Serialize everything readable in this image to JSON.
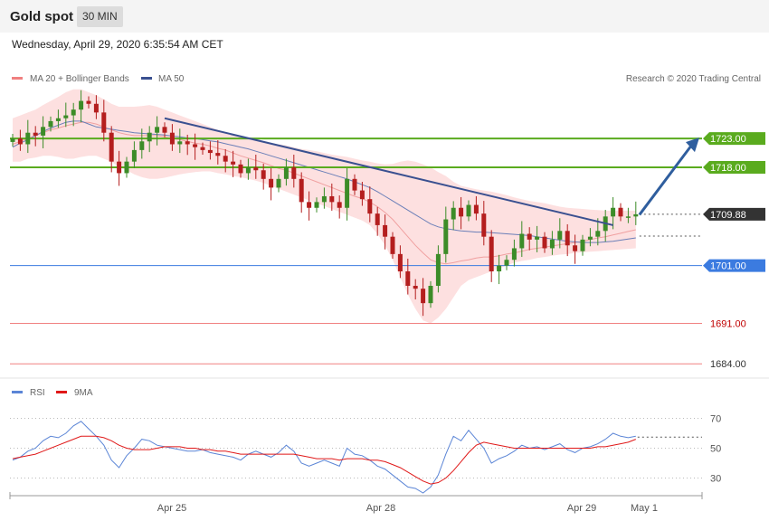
{
  "header": {
    "title": "Gold spot",
    "timeframe": "30 MIN"
  },
  "datetime": "Wednesday, April 29, 2020 6:35:54 AM CET",
  "legend": {
    "ma20": "MA 20 + Bollinger Bands",
    "ma50": "MA 50",
    "credit": "Research © 2020 Trading Central"
  },
  "rsi_legend": {
    "rsi": "RSI",
    "ma9": "9MA"
  },
  "colors": {
    "resistance": "#5aab1e",
    "pivot": "#3b7be0",
    "support": "#f08080",
    "trend": "#3a5090",
    "up": "#3c8c28",
    "down": "#b41e1e",
    "bands": "#fde0e0",
    "last": "#333333"
  },
  "chart_data": [
    {
      "type": "line",
      "title": "Gold spot",
      "ylim": [
        1682,
        1731
      ],
      "x_labels": [
        "Apr 25",
        "Apr 28",
        "Apr 29",
        "May 1"
      ],
      "levels": [
        {
          "name": "resistance2",
          "label": "1723.00",
          "value": 1723.0
        },
        {
          "name": "resistance1",
          "label": "1718.00",
          "value": 1718.0
        },
        {
          "name": "last",
          "label": "1709.88",
          "value": 1709.88
        },
        {
          "name": "pivot",
          "label": "1701.00",
          "value": 1701.0
        },
        {
          "name": "support1",
          "label": "1691.00",
          "value": 1691.0
        },
        {
          "name": "support2",
          "label": "1684.00",
          "value": 1684.0
        }
      ],
      "trendline": [
        [
          1726.5,
          1708.0
        ]
      ],
      "target_arrow": [
        1709.8,
        1723.0
      ],
      "close": [
        1723.0,
        1722.0,
        1724.0,
        1723.5,
        1725.0,
        1726.0,
        1726.5,
        1727.0,
        1728.0,
        1729.5,
        1729.0,
        1727.5,
        1724.0,
        1719.0,
        1717.0,
        1719.0,
        1721.0,
        1722.5,
        1724.0,
        1725.0,
        1724.0,
        1722.0,
        1722.5,
        1722.0,
        1721.5,
        1721.0,
        1720.5,
        1720.0,
        1719.0,
        1718.5,
        1717.0,
        1718.0,
        1717.5,
        1716.0,
        1714.5,
        1716.0,
        1718.0,
        1716.0,
        1712.0,
        1711.0,
        1712.0,
        1713.0,
        1712.0,
        1711.0,
        1716.0,
        1714.0,
        1712.5,
        1710.0,
        1708.0,
        1706.0,
        1703.0,
        1700.0,
        1697.5,
        1697.0,
        1694.5,
        1697.5,
        1703.0,
        1709.0,
        1711.0,
        1709.5,
        1711.5,
        1710.0,
        1706.0,
        1700.0,
        1701.0,
        1702.0,
        1704.0,
        1706.5,
        1705.5,
        1706.0,
        1704.0,
        1705.5,
        1707.0,
        1704.5,
        1703.5,
        1705.5,
        1706.0,
        1707.0,
        1709.5,
        1711.0,
        1709.5,
        1709.5,
        1709.88
      ],
      "ma20": [
        1722.0,
        1722.5,
        1723.0,
        1723.5,
        1724.0,
        1724.5,
        1724.8,
        1725.2,
        1725.5,
        1725.8,
        1725.8,
        1725.5,
        1725.0,
        1724.5,
        1724.0,
        1723.7,
        1723.5,
        1723.5,
        1723.5,
        1723.5,
        1723.3,
        1723.0,
        1722.8,
        1722.5,
        1722.2,
        1722.0,
        1721.7,
        1721.3,
        1721.0,
        1720.5,
        1720.0,
        1719.6,
        1719.2,
        1718.8,
        1718.3,
        1717.8,
        1717.5,
        1717.0,
        1716.5,
        1716.0,
        1715.5,
        1715.0,
        1714.5,
        1714.0,
        1713.5,
        1713.0,
        1712.6,
        1712.0,
        1711.2,
        1710.2,
        1709.0,
        1707.5,
        1706.0,
        1704.5,
        1703.2,
        1702.0,
        1701.5,
        1701.3,
        1701.5,
        1701.8,
        1702.0,
        1702.3,
        1702.5,
        1702.5,
        1702.7,
        1703.0,
        1703.2,
        1703.5,
        1703.8,
        1704.0,
        1704.2,
        1704.4,
        1704.6,
        1704.8,
        1705.0,
        1705.2,
        1705.5,
        1705.8,
        1706.0,
        1706.3,
        1706.6,
        1706.9,
        1707.2
      ],
      "bb_upper": [
        1726.5,
        1727.0,
        1727.5,
        1728.0,
        1728.8,
        1729.5,
        1730.2,
        1731.0,
        1731.5,
        1731.5,
        1731.0,
        1730.5,
        1729.8,
        1729.0,
        1728.5,
        1728.5,
        1728.5,
        1728.6,
        1728.8,
        1728.5,
        1728.0,
        1727.5,
        1727.0,
        1726.5,
        1726.0,
        1725.5,
        1725.0,
        1724.5,
        1724.0,
        1723.6,
        1723.3,
        1723.0,
        1722.7,
        1722.5,
        1722.2,
        1722.0,
        1721.8,
        1721.5,
        1721.2,
        1721.0,
        1720.8,
        1720.5,
        1720.2,
        1720.0,
        1719.8,
        1719.5,
        1719.2,
        1719.0,
        1718.7,
        1718.5,
        1718.6,
        1719.0,
        1719.2,
        1719.0,
        1718.5,
        1718.0,
        1717.2,
        1716.5,
        1715.5,
        1714.8,
        1714.5,
        1714.2,
        1714.0,
        1713.8,
        1713.5,
        1713.2,
        1712.8,
        1712.5,
        1712.2,
        1712.0,
        1711.8,
        1711.5,
        1711.2,
        1711.0,
        1710.9,
        1710.8,
        1710.7,
        1710.6,
        1710.5,
        1710.5,
        1710.5,
        1710.5,
        1710.5
      ],
      "bb_lower": [
        1719.0,
        1719.0,
        1719.5,
        1719.7,
        1720.0,
        1720.0,
        1719.8,
        1719.5,
        1719.5,
        1719.8,
        1720.0,
        1720.0,
        1719.5,
        1719.0,
        1718.0,
        1717.5,
        1716.8,
        1716.3,
        1716.0,
        1716.0,
        1716.2,
        1716.5,
        1716.8,
        1717.0,
        1717.2,
        1717.3,
        1717.3,
        1717.0,
        1716.8,
        1716.5,
        1716.3,
        1716.0,
        1715.7,
        1715.3,
        1714.8,
        1714.3,
        1713.8,
        1713.3,
        1712.8,
        1712.3,
        1711.8,
        1711.3,
        1710.8,
        1710.3,
        1709.8,
        1709.3,
        1708.8,
        1708.0,
        1706.5,
        1704.5,
        1702.0,
        1699.0,
        1696.0,
        1693.5,
        1691.5,
        1691.0,
        1692.0,
        1693.5,
        1695.5,
        1697.5,
        1698.5,
        1699.0,
        1699.5,
        1700.0,
        1700.5,
        1701.0,
        1701.5,
        1701.8,
        1702.0,
        1702.3,
        1702.5,
        1702.7,
        1702.9,
        1703.0,
        1703.2,
        1703.3,
        1703.4,
        1703.5,
        1703.6,
        1703.7,
        1703.8,
        1703.9,
        1704.0
      ],
      "ma50": [
        1721.5,
        1722.2,
        1722.8,
        1723.5,
        1724.2,
        1724.8,
        1725.3,
        1725.8,
        1726.0,
        1726.0,
        1725.5,
        1725.0,
        1724.8,
        1724.6,
        1724.4,
        1724.2,
        1724.0,
        1723.9,
        1723.8,
        1723.7,
        1723.6,
        1723.4,
        1723.3,
        1723.1,
        1723.0,
        1722.8,
        1722.6,
        1722.4,
        1722.1,
        1721.8,
        1721.5,
        1721.2,
        1720.8,
        1720.4,
        1720.0,
        1719.6,
        1719.2,
        1718.8,
        1718.4,
        1718.0,
        1717.6,
        1717.2,
        1716.8,
        1716.4,
        1716.0,
        1715.5,
        1715.0,
        1714.5,
        1713.8,
        1713.0,
        1712.2,
        1711.4,
        1710.6,
        1709.8,
        1709.0,
        1708.2,
        1707.7,
        1707.4,
        1707.2,
        1707.0,
        1706.9,
        1706.8,
        1706.8,
        1706.7,
        1706.6,
        1706.5,
        1706.4,
        1706.3,
        1706.2,
        1706.0,
        1705.8,
        1705.6,
        1705.4,
        1705.2,
        1705.1,
        1705.0,
        1705.0,
        1705.0,
        1705.1,
        1705.2,
        1705.4,
        1705.6,
        1705.8
      ]
    },
    {
      "type": "line",
      "ylim": [
        20,
        80
      ],
      "yticks": [
        30,
        50,
        70
      ],
      "x_labels": [
        "Apr 25",
        "Apr 28",
        "Apr 29",
        "May 1"
      ],
      "series": [
        {
          "name": "RSI",
          "values": [
            42,
            44,
            48,
            50,
            55,
            58,
            57,
            60,
            65,
            68,
            63,
            58,
            52,
            42,
            37,
            45,
            50,
            56,
            55,
            52,
            51,
            50,
            49,
            48,
            48,
            49,
            47,
            46,
            45,
            44,
            42,
            46,
            48,
            46,
            44,
            47,
            52,
            48,
            40,
            38,
            40,
            42,
            40,
            38,
            50,
            46,
            45,
            42,
            38,
            36,
            32,
            28,
            24,
            23,
            20,
            24,
            32,
            46,
            58,
            55,
            62,
            56,
            50,
            40,
            43,
            45,
            48,
            52,
            50,
            51,
            49,
            51,
            53,
            49,
            47,
            50,
            51,
            53,
            56,
            60,
            58,
            57,
            58
          ]
        },
        {
          "name": "9MA",
          "values": [
            43,
            44,
            45,
            46,
            48,
            50,
            52,
            54,
            56,
            58,
            58,
            58,
            57,
            55,
            52,
            50,
            49,
            49,
            49,
            50,
            51,
            51,
            51,
            50,
            50,
            49,
            49,
            48,
            48,
            47,
            46,
            46,
            46,
            46,
            46,
            46,
            46,
            46,
            45,
            44,
            43,
            43,
            43,
            42,
            43,
            43,
            43,
            42,
            42,
            41,
            39,
            37,
            34,
            31,
            28,
            26,
            27,
            30,
            35,
            41,
            47,
            52,
            54,
            53,
            52,
            51,
            50,
            50,
            50,
            50,
            50,
            50,
            50,
            50,
            50,
            50,
            50,
            51,
            51,
            52,
            53,
            54,
            56
          ]
        }
      ]
    }
  ]
}
